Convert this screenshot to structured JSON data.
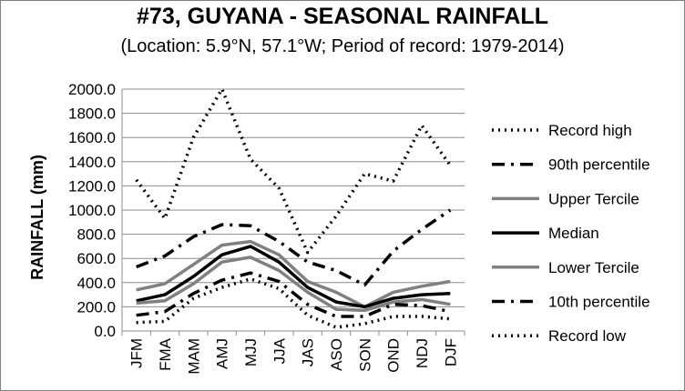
{
  "chart_data": {
    "type": "line",
    "title": "#73, GUYANA - SEASONAL RAINFALL",
    "subtitle": "(Location: 5.9°N, 57.1°W; Period of record: 1979-2014)",
    "xlabel": "",
    "ylabel": "RAINFALL (mm)",
    "ylim": [
      0,
      2000
    ],
    "yticks": [
      "0.0",
      "200.0",
      "400.0",
      "600.0",
      "800.0",
      "1000.0",
      "1200.0",
      "1400.0",
      "1600.0",
      "1800.0",
      "2000.0"
    ],
    "grid": "horizontal",
    "legend_position": "right",
    "categories": [
      "JFM",
      "FMA",
      "MAM",
      "AMJ",
      "MJJ",
      "JJA",
      "JAS",
      "ASO",
      "SON",
      "OND",
      "NDJ",
      "DJF"
    ],
    "series": [
      {
        "name": "Record high",
        "color": "#000000",
        "style": "dotted",
        "values": [
          1250,
          930,
          1600,
          2000,
          1420,
          1180,
          650,
          950,
          1300,
          1240,
          1700,
          1370
        ]
      },
      {
        "name": "90th percentile",
        "color": "#000000",
        "style": "dashdot",
        "values": [
          530,
          620,
          780,
          880,
          870,
          740,
          570,
          500,
          380,
          660,
          840,
          1000
        ]
      },
      {
        "name": "Upper Tercile",
        "color": "#808080",
        "style": "solid",
        "values": [
          340,
          390,
          550,
          710,
          740,
          630,
          410,
          320,
          200,
          320,
          370,
          410
        ]
      },
      {
        "name": "Median",
        "color": "#000000",
        "style": "solid",
        "values": [
          250,
          300,
          450,
          630,
          700,
          570,
          360,
          240,
          200,
          270,
          300,
          310
        ]
      },
      {
        "name": "Lower Tercile",
        "color": "#808080",
        "style": "solid",
        "values": [
          230,
          250,
          390,
          570,
          610,
          500,
          320,
          180,
          170,
          240,
          260,
          220
        ]
      },
      {
        "name": "10th percentile",
        "color": "#000000",
        "style": "dashdot",
        "values": [
          130,
          160,
          310,
          420,
          480,
          410,
          220,
          120,
          120,
          220,
          210,
          160
        ]
      },
      {
        "name": "Record low",
        "color": "#000000",
        "style": "dotted",
        "values": [
          70,
          80,
          270,
          360,
          430,
          350,
          130,
          30,
          60,
          120,
          120,
          100
        ]
      }
    ]
  }
}
